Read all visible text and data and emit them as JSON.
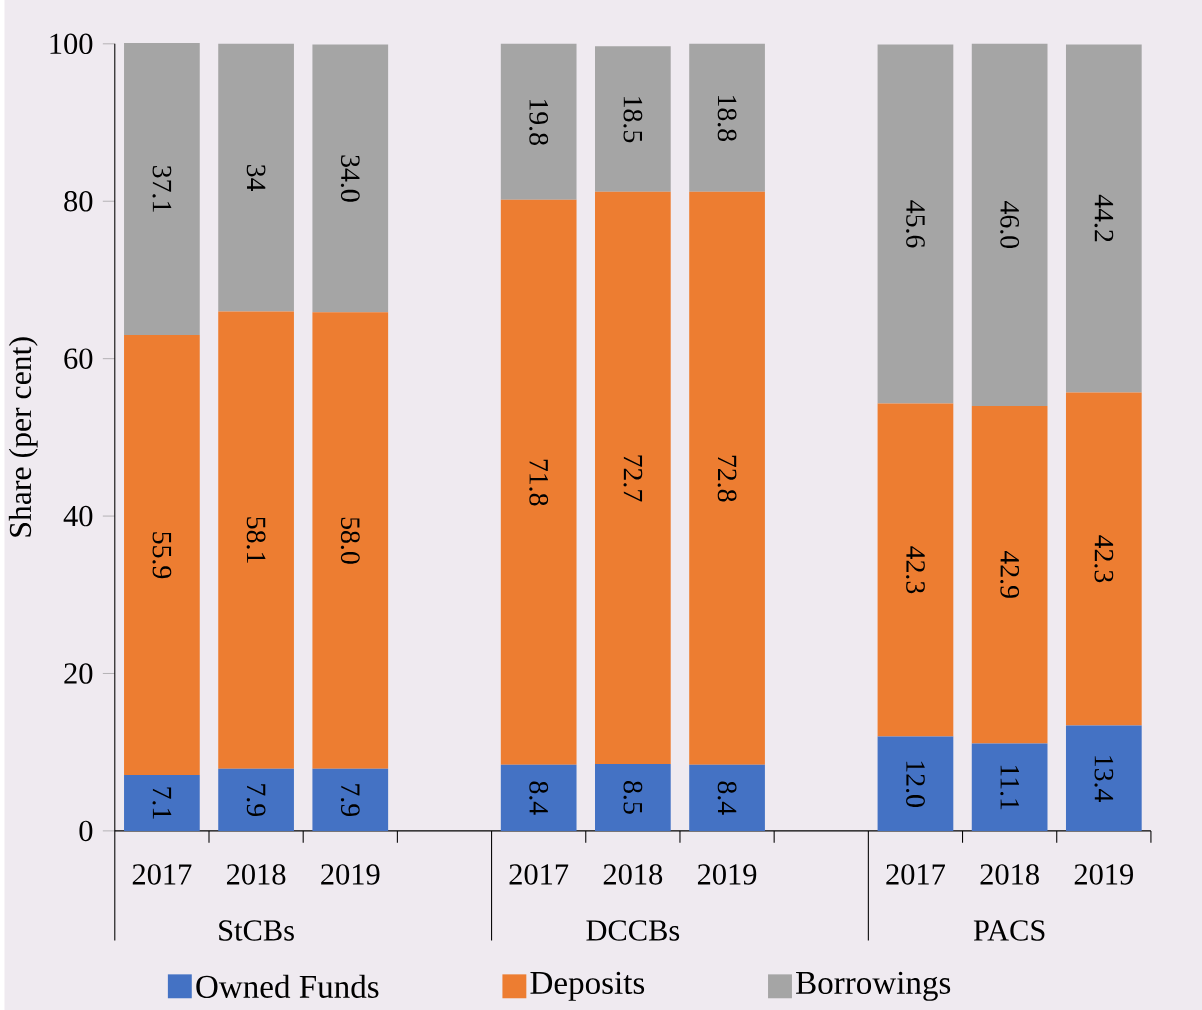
{
  "chart_data": {
    "type": "bar",
    "stacked": true,
    "ylabel": "Share (per cent)",
    "categories": [
      "2017",
      "2018",
      "2019",
      null,
      "2017",
      "2018",
      "2019",
      null,
      "2017",
      "2018",
      "2019"
    ],
    "series": [
      {
        "name": "Owned Funds",
        "color": "#4472c4",
        "values": [
          7.1,
          7.9,
          7.9,
          null,
          8.4,
          8.5,
          8.4,
          null,
          12.0,
          11.1,
          13.4
        ],
        "value_labels": [
          "7.1",
          "7.9",
          "7.9",
          null,
          "8.4",
          "8.5",
          "8.4",
          null,
          "12.0",
          "11.1",
          "13.4"
        ]
      },
      {
        "name": "Deposits",
        "color": "#ed7d31",
        "values": [
          55.9,
          58.1,
          58.0,
          null,
          71.8,
          72.7,
          72.8,
          null,
          42.3,
          42.9,
          42.3
        ],
        "value_labels": [
          "55.9",
          "58.1",
          "58.0",
          null,
          "71.8",
          "72.7",
          "72.8",
          null,
          "42.3",
          "42.9",
          "42.3"
        ]
      },
      {
        "name": "Borrowings",
        "color": "#a5a5a5",
        "values": [
          37.1,
          34,
          34.0,
          null,
          19.8,
          18.5,
          18.8,
          null,
          45.6,
          46.0,
          44.2
        ],
        "value_labels": [
          "37.1",
          "34",
          "34.0",
          null,
          "19.8",
          "18.5",
          "18.8",
          null,
          "45.6",
          "46.0",
          "44.2"
        ]
      }
    ],
    "ylim": [
      0,
      100
    ],
    "yticks": [
      0,
      20,
      40,
      60,
      80,
      100
    ],
    "grid": false,
    "legend": "bottom",
    "annotations": [
      "StCBs",
      "DCCBs",
      "PACS"
    ]
  }
}
